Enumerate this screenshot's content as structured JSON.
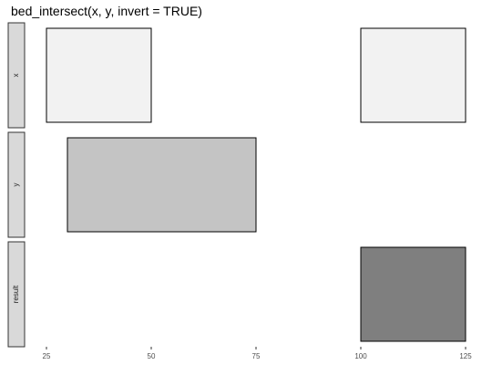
{
  "title": "bed_intersect(x, y, invert = TRUE)",
  "chart_data": {
    "type": "interval",
    "xlim": [
      20,
      130
    ],
    "ticks": [
      {
        "value": 25,
        "label": "25"
      },
      {
        "value": 50,
        "label": "50"
      },
      {
        "value": 75,
        "label": "75"
      },
      {
        "value": 100,
        "label": "100"
      },
      {
        "value": 125,
        "label": "125"
      }
    ],
    "panels": [
      {
        "label": "x",
        "color": "#f2f2f2",
        "intervals": [
          {
            "start": 25,
            "end": 50
          },
          {
            "start": 100,
            "end": 125
          }
        ]
      },
      {
        "label": "y",
        "color": "#c4c4c4",
        "intervals": [
          {
            "start": 30,
            "end": 75
          }
        ]
      },
      {
        "label": "result",
        "color": "#7f7f7f",
        "intervals": [
          {
            "start": 100,
            "end": 125
          }
        ]
      }
    ],
    "grid": false,
    "legend": "none"
  }
}
